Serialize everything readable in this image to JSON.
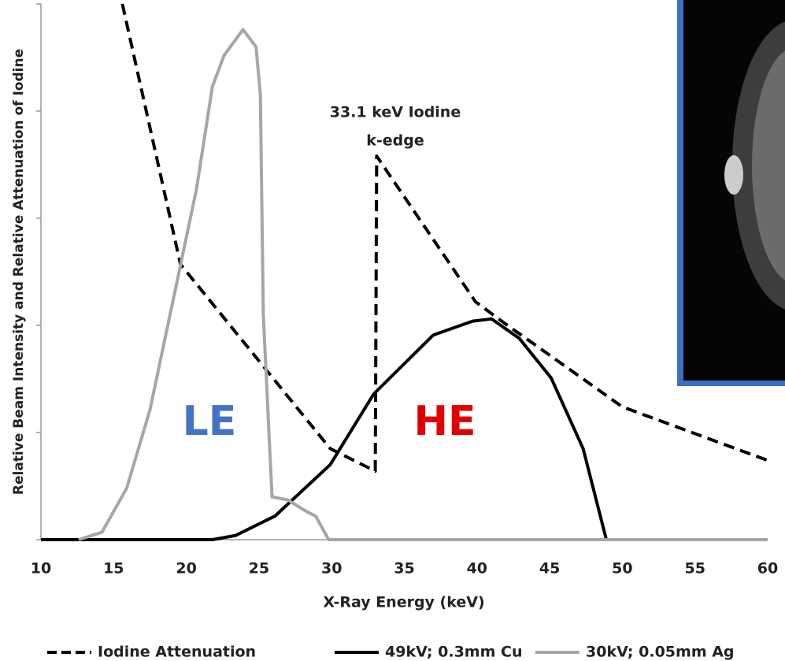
{
  "chart_data": {
    "type": "line",
    "y_label": "Relative Beam Intensity and Relative Attenuation of Iodine",
    "x_label": "X-Ray Energy (keV)",
    "annotations": {
      "k_edge": [
        "33.1 keV Iodine",
        "k-edge"
      ],
      "le": "LE",
      "he": "HE"
    },
    "annotation_colors": {
      "le": "#4472c4",
      "he": "#e00000"
    },
    "xlim": [
      10,
      60
    ],
    "xticks": [
      10,
      15,
      20,
      25,
      30,
      35,
      40,
      45,
      50,
      55,
      60
    ],
    "ylim": [
      0,
      5
    ],
    "yticks": [
      0,
      1,
      2,
      3,
      4,
      5
    ],
    "series": [
      {
        "name": "Iodine Attenuation",
        "color": "#000000",
        "dash": true,
        "x": [
          15.6,
          19.6,
          29.9,
          33.0,
          33.1,
          39.9,
          41.9,
          50.0,
          60.0
        ],
        "values": [
          5.0,
          2.57,
          0.85,
          0.64,
          3.58,
          2.22,
          2.02,
          1.24,
          0.74
        ]
      },
      {
        "name": "49kV; 0.3mm Cu",
        "color": "#000000",
        "dash": false,
        "x": [
          10,
          21.8,
          23.4,
          26.1,
          29.9,
          32.9,
          37.0,
          39.7,
          41.0,
          42.9,
          45.1,
          47.3,
          48.9
        ],
        "values": [
          0,
          0,
          0.04,
          0.22,
          0.7,
          1.36,
          1.91,
          2.04,
          2.06,
          1.88,
          1.51,
          0.85,
          0
        ]
      },
      {
        "name": "30kV; 0.05mm Ag",
        "color": "#a6a6a6",
        "dash": false,
        "x": [
          12.6,
          14.2,
          15.9,
          17.5,
          19.1,
          20.7,
          21.8,
          22.6,
          23.9,
          24.8,
          25.1,
          25.3,
          25.9,
          27.0,
          28.3,
          28.9,
          29.8,
          60
        ],
        "values": [
          0,
          0.07,
          0.48,
          1.21,
          2.24,
          3.27,
          4.23,
          4.52,
          4.76,
          4.6,
          4.15,
          2.1,
          0.4,
          0.37,
          0.26,
          0.22,
          0,
          0
        ]
      }
    ]
  }
}
